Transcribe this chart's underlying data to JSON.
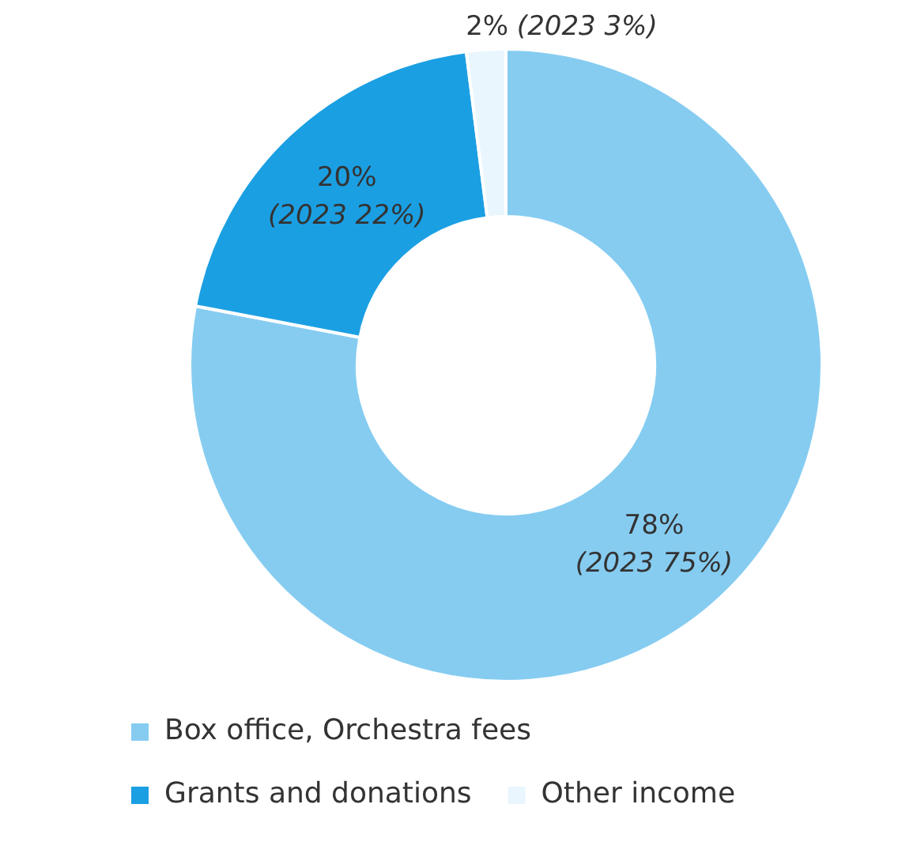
{
  "chart_data": {
    "type": "donut",
    "categories": [
      "Box office, Orchestra fees",
      "Grants and donations",
      "Other income"
    ],
    "values": [
      78,
      20,
      2
    ],
    "colors": [
      "#86ccf1",
      "#1b9fe3",
      "#e9f6fd"
    ],
    "value_labels": [
      "78% (2023 75%)",
      "20% (2023 22%)",
      "2% (2023 3%)"
    ],
    "legend": "bottom"
  }
}
